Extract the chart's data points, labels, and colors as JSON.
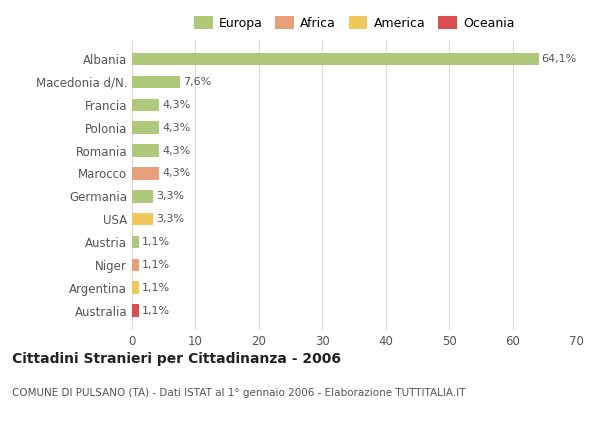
{
  "categories": [
    "Albania",
    "Macedonia d/N.",
    "Francia",
    "Polonia",
    "Romania",
    "Marocco",
    "Germania",
    "USA",
    "Austria",
    "Niger",
    "Argentina",
    "Australia"
  ],
  "values": [
    64.1,
    7.6,
    4.3,
    4.3,
    4.3,
    4.3,
    3.3,
    3.3,
    1.1,
    1.1,
    1.1,
    1.1
  ],
  "labels": [
    "64,1%",
    "7,6%",
    "4,3%",
    "4,3%",
    "4,3%",
    "4,3%",
    "3,3%",
    "3,3%",
    "1,1%",
    "1,1%",
    "1,1%",
    "1,1%"
  ],
  "colors": [
    "#aec97a",
    "#aec97a",
    "#aec97a",
    "#aec97a",
    "#aec97a",
    "#e8a07a",
    "#aec97a",
    "#f0c75a",
    "#aec97a",
    "#e8a07a",
    "#f0c75a",
    "#d94f4f"
  ],
  "legend_labels": [
    "Europa",
    "Africa",
    "America",
    "Oceania"
  ],
  "legend_colors": [
    "#aec97a",
    "#e8a07a",
    "#f0c75a",
    "#d94f4f"
  ],
  "title": "Cittadini Stranieri per Cittadinanza - 2006",
  "subtitle": "COMUNE DI PULSANO (TA) - Dati ISTAT al 1° gennaio 2006 - Elaborazione TUTTITALIA.IT",
  "xlim": [
    0,
    70
  ],
  "xticks": [
    0,
    10,
    20,
    30,
    40,
    50,
    60,
    70
  ],
  "bg_color": "#ffffff",
  "grid_color": "#dddddd",
  "bar_height": 0.55
}
